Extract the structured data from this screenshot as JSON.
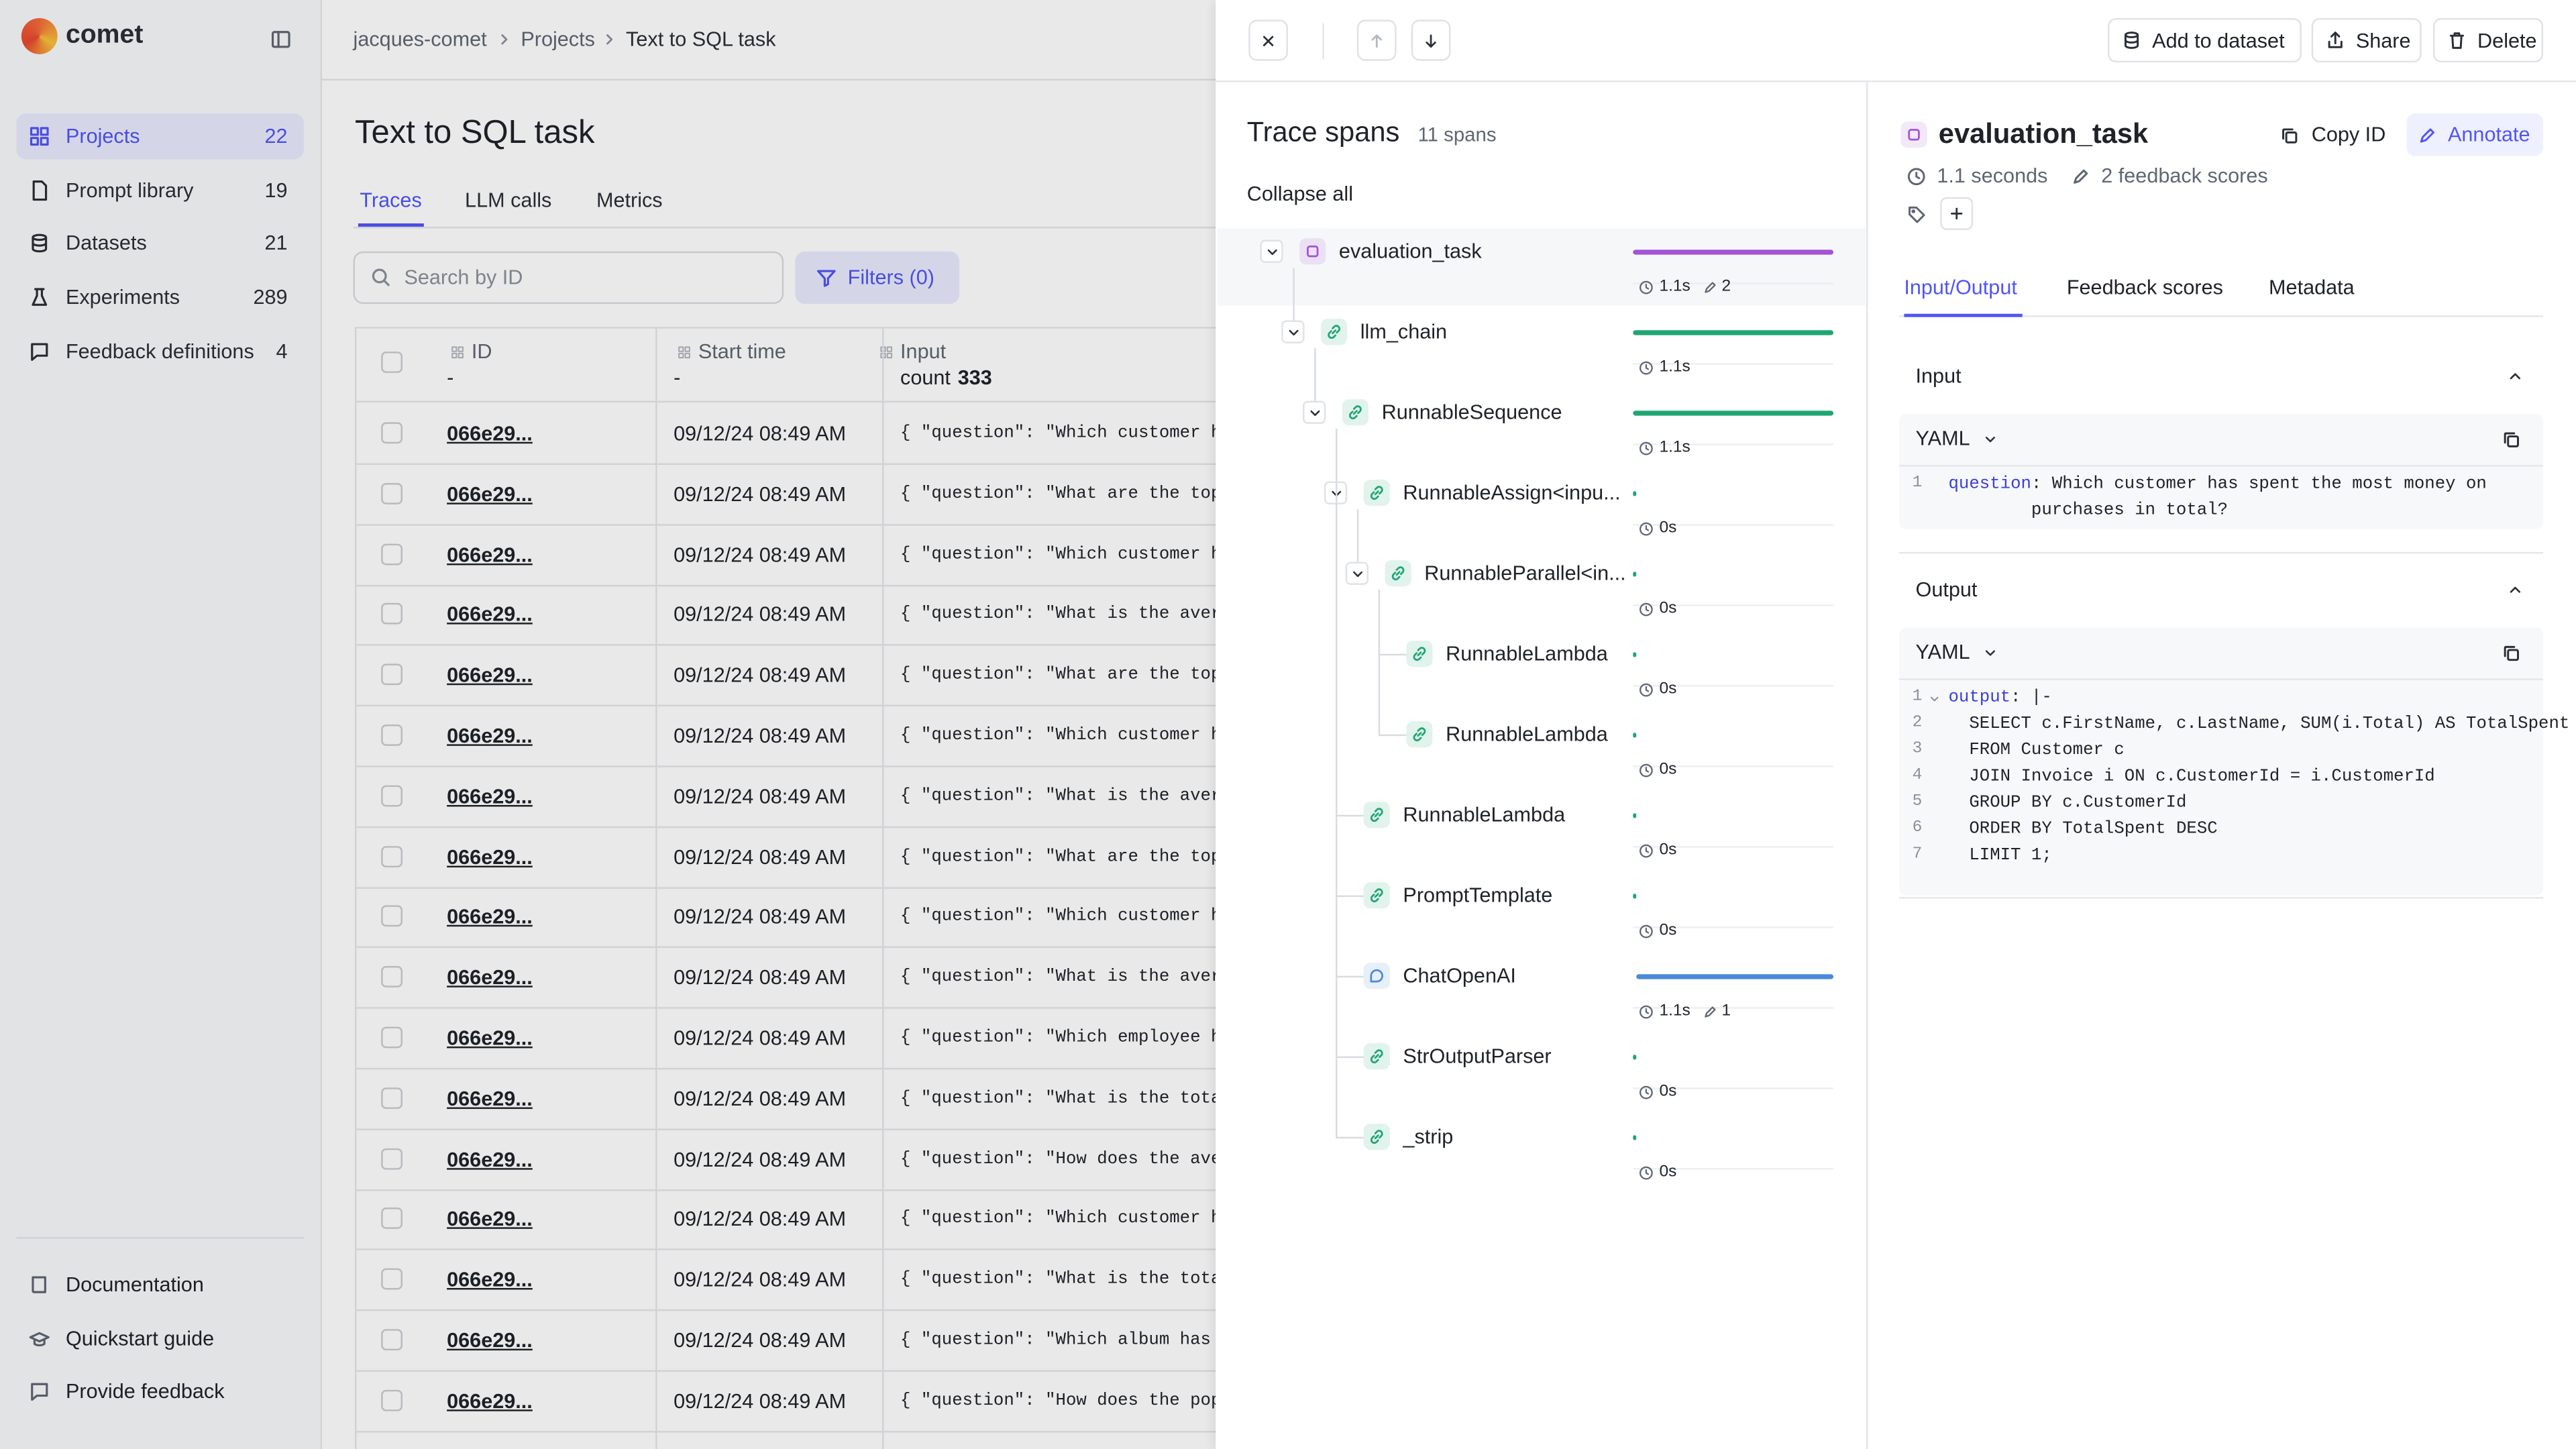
{
  "sidebar": {
    "logo": "comet",
    "nav": [
      {
        "label": "Projects",
        "count": 22
      },
      {
        "label": "Prompt library",
        "count": 19
      },
      {
        "label": "Datasets",
        "count": 21
      },
      {
        "label": "Experiments",
        "count": 289
      },
      {
        "label": "Feedback definitions",
        "count": 4
      }
    ],
    "footer": [
      "Documentation",
      "Quickstart guide",
      "Provide feedback"
    ]
  },
  "breadcrumb": [
    "jacques-comet",
    "Projects",
    "Text to SQL task"
  ],
  "page": {
    "title": "Text to SQL task",
    "tabs": [
      "Traces",
      "LLM calls",
      "Metrics"
    ],
    "search_placeholder": "Search by ID",
    "filters": "Filters (0)"
  },
  "table": {
    "columns": [
      {
        "label": "ID",
        "summary": "-"
      },
      {
        "label": "Start time",
        "summary": "-"
      },
      {
        "label": "Input",
        "summary_label": "count",
        "summary": 333
      }
    ],
    "rows": [
      [
        "066e29...",
        "09/12/24 08:49 AM",
        "{ \"question\": \"Which customer has"
      ],
      [
        "066e29...",
        "09/12/24 08:49 AM",
        "{ \"question\": \"What are the top S"
      ],
      [
        "066e29...",
        "09/12/24 08:49 AM",
        "{ \"question\": \"Which customer has"
      ],
      [
        "066e29...",
        "09/12/24 08:49 AM",
        "{ \"question\": \"What is the averag"
      ],
      [
        "066e29...",
        "09/12/24 08:49 AM",
        "{ \"question\": \"What are the top S"
      ],
      [
        "066e29...",
        "09/12/24 08:49 AM",
        "{ \"question\": \"Which customer has"
      ],
      [
        "066e29...",
        "09/12/24 08:49 AM",
        "{ \"question\": \"What is the averag"
      ],
      [
        "066e29...",
        "09/12/24 08:49 AM",
        "{ \"question\": \"What are the top S"
      ],
      [
        "066e29...",
        "09/12/24 08:49 AM",
        "{ \"question\": \"Which customer has"
      ],
      [
        "066e29...",
        "09/12/24 08:49 AM",
        "{ \"question\": \"What is the averag"
      ],
      [
        "066e29...",
        "09/12/24 08:49 AM",
        "{ \"question\": \"Which employee has"
      ],
      [
        "066e29...",
        "09/12/24 08:49 AM",
        "{ \"question\": \"What is the total"
      ],
      [
        "066e29...",
        "09/12/24 08:49 AM",
        "{ \"question\": \"How does the avera"
      ],
      [
        "066e29...",
        "09/12/24 08:49 AM",
        "{ \"question\": \"Which customer has"
      ],
      [
        "066e29...",
        "09/12/24 08:49 AM",
        "{ \"question\": \"What is the total"
      ],
      [
        "066e29...",
        "09/12/24 08:49 AM",
        "{ \"question\": \"Which album has th"
      ],
      [
        "066e29...",
        "09/12/24 08:49 AM",
        "{ \"question\": \"How does the popul"
      ]
    ]
  },
  "toolbar": {
    "buttons": [
      "Add to dataset",
      "Share",
      "Delete"
    ]
  },
  "spans": {
    "title": "Trace spans",
    "count": "11 spans",
    "collapse": "Collapse all",
    "items": [
      {
        "name": "evaluation_task",
        "depth": 0,
        "duration": "1.1s",
        "scores": "2",
        "color": "#a452d6"
      },
      {
        "name": "llm_chain",
        "depth": 1,
        "duration": "1.1s",
        "color": "#1ea672"
      },
      {
        "name": "RunnableSequence",
        "depth": 2,
        "duration": "1.1s",
        "color": "#1ea672"
      },
      {
        "name": "RunnableAssign<inpu...",
        "depth": 3,
        "duration": "0s",
        "color": "#1ea672"
      },
      {
        "name": "RunnableParallel<in...",
        "depth": 4,
        "duration": "0s",
        "color": "#1ea672"
      },
      {
        "name": "RunnableLambda",
        "depth": 5,
        "duration": "0s",
        "color": "#1ea672"
      },
      {
        "name": "RunnableLambda",
        "depth": 5,
        "duration": "0s",
        "color": "#1ea672"
      },
      {
        "name": "RunnableLambda",
        "depth": 3,
        "duration": "0s",
        "color": "#1ea672"
      },
      {
        "name": "PromptTemplate",
        "depth": 3,
        "duration": "0s",
        "color": "#1ea672"
      },
      {
        "name": "ChatOpenAI",
        "depth": 3,
        "duration": "1.1s",
        "scores": "1",
        "color": "#4a8ad8"
      },
      {
        "name": "StrOutputParser",
        "depth": 3,
        "duration": "0s",
        "color": "#1ea672"
      },
      {
        "name": "_strip",
        "depth": 3,
        "duration": "0s",
        "color": "#1ea672"
      }
    ]
  },
  "detail": {
    "title": "evaluation_task",
    "copy_id": "Copy ID",
    "annotate": "Annotate",
    "duration": "1.1 seconds",
    "feedback": "2 feedback scores",
    "tabs": [
      "Input/Output",
      "Feedback scores",
      "Metadata"
    ],
    "input": {
      "title": "Input",
      "format": "YAML",
      "lines": [
        {
          "n": 1,
          "key": "question",
          "text": ": Which customer has spent the most money on purchases in total?"
        }
      ]
    },
    "output": {
      "title": "Output",
      "format": "YAML",
      "lines": [
        {
          "n": 1,
          "key": "output",
          "text": ": |-"
        },
        {
          "n": 2,
          "text": "SELECT c.FirstName, c.LastName, SUM(i.Total) AS TotalSpent"
        },
        {
          "n": 3,
          "text": "FROM Customer c"
        },
        {
          "n": 4,
          "text": "JOIN Invoice i ON c.CustomerId = i.CustomerId"
        },
        {
          "n": 5,
          "text": "GROUP BY c.CustomerId"
        },
        {
          "n": 6,
          "text": "ORDER BY TotalSpent DESC"
        },
        {
          "n": 7,
          "text": "LIMIT 1;"
        }
      ]
    }
  }
}
